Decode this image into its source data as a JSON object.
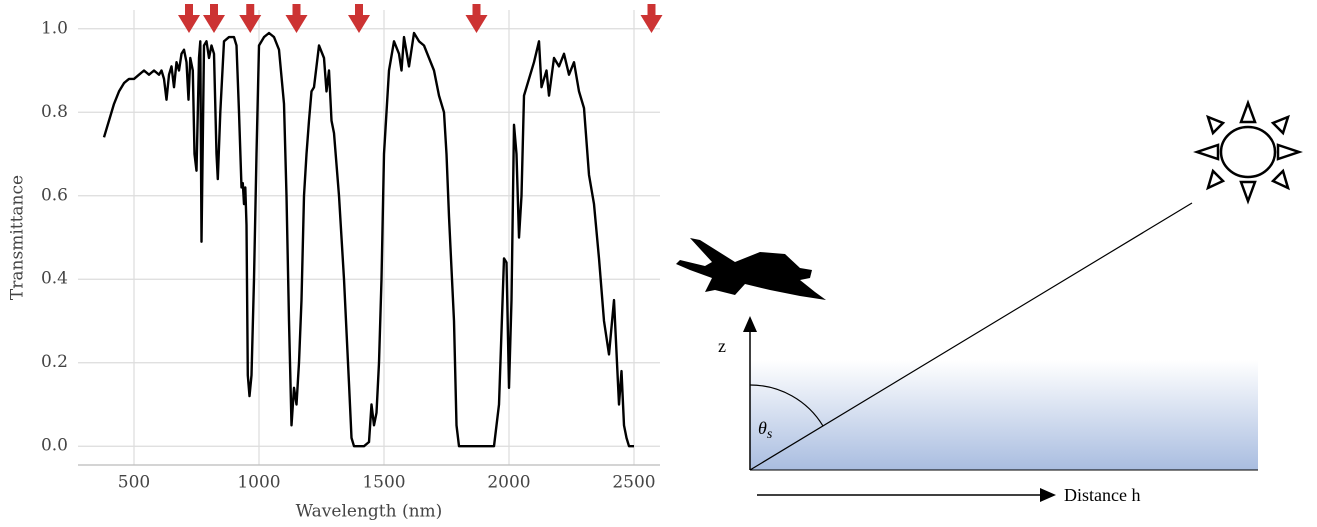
{
  "chart_data": {
    "type": "line",
    "x_label": "Wavelength (nm)",
    "y_label": "Transmittance",
    "x": [
      380,
      400,
      420,
      440,
      460,
      480,
      500,
      520,
      540,
      560,
      580,
      600,
      610,
      620,
      630,
      640,
      650,
      660,
      670,
      680,
      690,
      700,
      710,
      718,
      725,
      735,
      742,
      750,
      760,
      765,
      770,
      780,
      790,
      800,
      810,
      820,
      830,
      835,
      845,
      860,
      880,
      900,
      910,
      920,
      930,
      935,
      940,
      945,
      950,
      955,
      962,
      970,
      980,
      990,
      1000,
      1020,
      1040,
      1060,
      1080,
      1100,
      1110,
      1120,
      1130,
      1140,
      1150,
      1160,
      1170,
      1180,
      1190,
      1200,
      1210,
      1220,
      1240,
      1260,
      1270,
      1280,
      1290,
      1300,
      1320,
      1340,
      1360,
      1370,
      1380,
      1400,
      1420,
      1440,
      1450,
      1460,
      1470,
      1480,
      1490,
      1500,
      1520,
      1540,
      1560,
      1570,
      1580,
      1600,
      1620,
      1640,
      1660,
      1680,
      1700,
      1720,
      1740,
      1750,
      1760,
      1780,
      1790,
      1800,
      1850,
      1900,
      1940,
      1960,
      1980,
      1990,
      2000,
      2010,
      2020,
      2030,
      2040,
      2050,
      2060,
      2080,
      2100,
      2120,
      2130,
      2150,
      2160,
      2180,
      2200,
      2220,
      2240,
      2260,
      2280,
      2300,
      2320,
      2340,
      2360,
      2380,
      2400,
      2420,
      2440,
      2450,
      2460,
      2470,
      2480,
      2500
    ],
    "values": [
      0.74,
      0.78,
      0.82,
      0.85,
      0.87,
      0.88,
      0.88,
      0.89,
      0.9,
      0.89,
      0.9,
      0.89,
      0.9,
      0.88,
      0.83,
      0.89,
      0.91,
      0.86,
      0.92,
      0.9,
      0.94,
      0.95,
      0.92,
      0.83,
      0.93,
      0.9,
      0.7,
      0.66,
      0.93,
      0.97,
      0.49,
      0.96,
      0.97,
      0.93,
      0.96,
      0.94,
      0.7,
      0.64,
      0.8,
      0.97,
      0.98,
      0.98,
      0.96,
      0.8,
      0.62,
      0.63,
      0.58,
      0.62,
      0.53,
      0.17,
      0.12,
      0.17,
      0.4,
      0.7,
      0.96,
      0.98,
      0.99,
      0.98,
      0.95,
      0.82,
      0.6,
      0.3,
      0.05,
      0.14,
      0.1,
      0.2,
      0.35,
      0.6,
      0.7,
      0.78,
      0.85,
      0.86,
      0.96,
      0.93,
      0.85,
      0.9,
      0.78,
      0.75,
      0.6,
      0.4,
      0.15,
      0.02,
      0.0,
      0.0,
      0.0,
      0.01,
      0.1,
      0.05,
      0.08,
      0.2,
      0.4,
      0.7,
      0.9,
      0.97,
      0.94,
      0.9,
      0.98,
      0.91,
      0.99,
      0.97,
      0.96,
      0.93,
      0.9,
      0.84,
      0.8,
      0.7,
      0.55,
      0.3,
      0.05,
      0.0,
      0.0,
      0.0,
      0.0,
      0.1,
      0.45,
      0.44,
      0.14,
      0.35,
      0.77,
      0.7,
      0.5,
      0.6,
      0.84,
      0.88,
      0.92,
      0.97,
      0.86,
      0.9,
      0.84,
      0.93,
      0.91,
      0.94,
      0.89,
      0.92,
      0.85,
      0.81,
      0.65,
      0.58,
      0.45,
      0.3,
      0.22,
      0.35,
      0.1,
      0.18,
      0.05,
      0.02,
      0.0,
      0.0
    ],
    "color": "#000000",
    "markers": {
      "x": [
        720,
        820,
        965,
        1150,
        1400,
        1870,
        2570
      ],
      "color": "#cc3333"
    },
    "xlim": [
      276,
      2604
    ],
    "ylim": [
      -0.045,
      1.045
    ],
    "xticks": [
      500,
      1000,
      1500,
      2000,
      2500
    ],
    "yticks": [
      {
        "value": 0,
        "label": "0.0"
      },
      0.2,
      0.4,
      0.6,
      0.8,
      {
        "value": 1,
        "label": "1.0"
      }
    ],
    "grid": true
  },
  "diagram": {
    "z_label": "z",
    "angle_label": "θ",
    "angle_subscript": "s",
    "distance_label": "Distance h"
  }
}
